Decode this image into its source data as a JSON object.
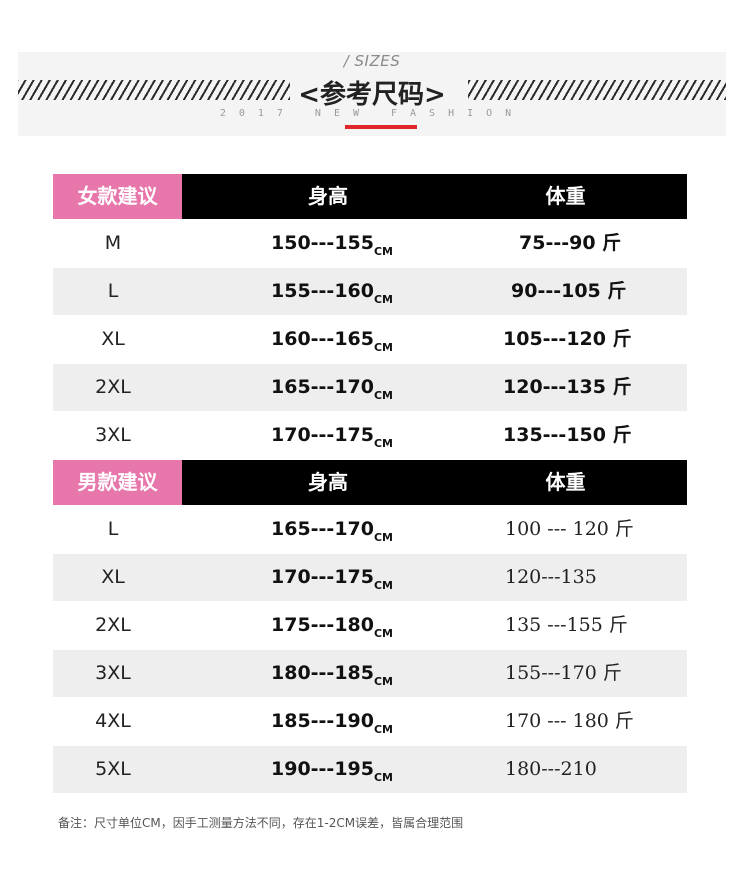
{
  "header": {
    "sizes_label": "/ SIZES",
    "title": "<参考尺码>",
    "subtitle": "2017 NEW FASHION"
  },
  "women": {
    "label": "女款建议",
    "col_height": "身高",
    "col_weight": "体重",
    "rows": [
      {
        "size": "M",
        "height": "150---155",
        "unit": "CM",
        "weight": "75---90 斤"
      },
      {
        "size": "L",
        "height": "155---160",
        "unit": "CM",
        "weight": "90---105 斤"
      },
      {
        "size": "XL",
        "height": "160---165",
        "unit": "CM",
        "weight": "105---120 斤"
      },
      {
        "size": "2XL",
        "height": "165---170",
        "unit": "CM",
        "weight": "120---135 斤"
      },
      {
        "size": "3XL",
        "height": "170---175",
        "unit": "CM",
        "weight": "135---150 斤"
      }
    ]
  },
  "men": {
    "label": "男款建议",
    "col_height": "身高",
    "col_weight": "体重",
    "rows": [
      {
        "size": "L",
        "height": "165---170",
        "unit": "CM",
        "weight": "100 --- 120 斤"
      },
      {
        "size": "XL",
        "height": "170---175",
        "unit": "CM",
        "weight": "120---135"
      },
      {
        "size": "2XL",
        "height": "175---180",
        "unit": "CM",
        "weight": "135 ---155 斤"
      },
      {
        "size": "3XL",
        "height": "180---185",
        "unit": "CM",
        "weight": "155---170 斤"
      },
      {
        "size": "4XL",
        "height": "185---190",
        "unit": "CM",
        "weight": "170 --- 180 斤"
      },
      {
        "size": "5XL",
        "height": "190---195",
        "unit": "CM",
        "weight": "180---210"
      }
    ]
  },
  "note": "备注：尺寸单位CM，因手工测量方法不同，存在1-2CM误差，皆属合理范围",
  "colors": {
    "pink": "#e776ab",
    "black": "#000000",
    "red": "#e0262a",
    "row_alt": "#eeeeee"
  }
}
